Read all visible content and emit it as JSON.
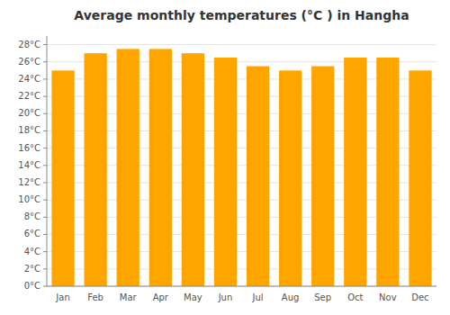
{
  "chart_data": {
    "type": "bar",
    "title": "Average monthly temperatures (°C ) in Hangha",
    "categories": [
      "Jan",
      "Feb",
      "Mar",
      "Apr",
      "May",
      "Jun",
      "Jul",
      "Aug",
      "Sep",
      "Oct",
      "Nov",
      "Dec"
    ],
    "values": [
      25.0,
      27.0,
      27.5,
      27.5,
      27.0,
      26.5,
      25.5,
      25.0,
      25.5,
      26.5,
      26.5,
      25.0
    ],
    "color": "#FFA500",
    "ylim": [
      0,
      29
    ],
    "yticks": [
      {
        "value": 0,
        "label": "0°C"
      },
      {
        "value": 2,
        "label": "2°C"
      },
      {
        "value": 4,
        "label": "4°C"
      },
      {
        "value": 6,
        "label": "6°C"
      },
      {
        "value": 8,
        "label": "8°C"
      },
      {
        "value": 10,
        "label": "10°C"
      },
      {
        "value": 12,
        "label": "12°C"
      },
      {
        "value": 14,
        "label": "14°C"
      },
      {
        "value": 16,
        "label": "16°C"
      },
      {
        "value": 18,
        "label": "18°C"
      },
      {
        "value": 20,
        "label": "20°C"
      },
      {
        "value": 22,
        "label": "22°C"
      },
      {
        "value": 24,
        "label": "24°C"
      },
      {
        "value": 26,
        "label": "26°C"
      },
      {
        "value": 28,
        "label": "28°C"
      }
    ],
    "grid": true
  }
}
